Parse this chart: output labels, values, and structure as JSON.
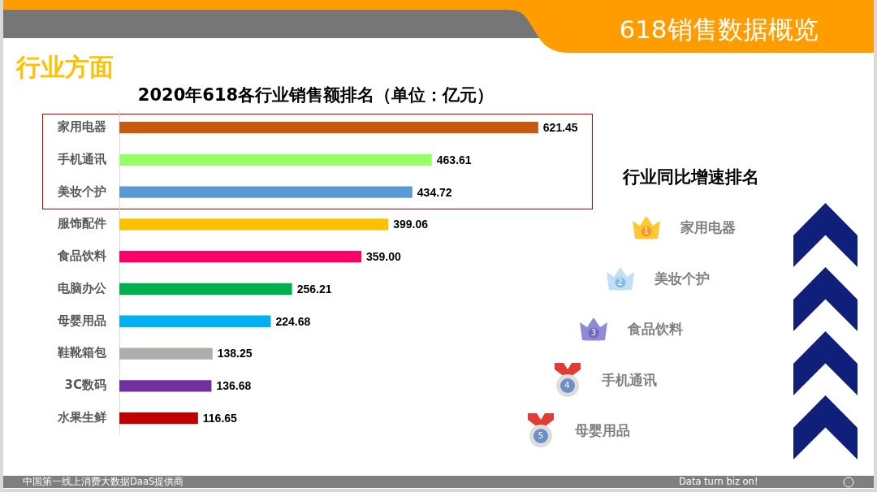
{
  "chart_data": [
    {
      "type": "bar",
      "orientation": "horizontal",
      "title": "2020年618各行业销售额排名（单位：亿元）",
      "annotations": [
        "618销售数据概览",
        "行业方面",
        "中国第一线上消费大数据DaaS提供商",
        "Data turn biz on!"
      ],
      "categories": [
        "家用电器",
        "手机通讯",
        "美妆个护",
        "服饰配件",
        "食品饮料",
        "电脑办公",
        "母婴用品",
        "鞋靴箱包",
        "3C数码",
        "水果生鲜"
      ],
      "values": [
        621.45,
        463.61,
        434.72,
        399.06,
        359.0,
        256.21,
        224.68,
        138.25,
        136.68,
        116.65
      ],
      "value_labels": [
        "621.45",
        "463.61",
        "434.72",
        "399.06",
        "359.00",
        "256.21",
        "224.68",
        "138.25",
        "136.68",
        "116.65"
      ],
      "colors": [
        "#c55a11",
        "#99ff66",
        "#5b9bd5",
        "#ffc000",
        "#ff0066",
        "#00b050",
        "#00b0f0",
        "#aeaeaa",
        "#7030a0",
        "#c00000"
      ],
      "tick_labels": "y"
    },
    {
      "type": "other",
      "title": "行业同比增速排名",
      "categories": [
        "家用电器",
        "美妆个护",
        "食品饮料",
        "手机通讯",
        "母婴用品"
      ],
      "values": [
        1,
        2,
        3,
        4,
        5
      ],
      "data_labels": true
    }
  ]
}
